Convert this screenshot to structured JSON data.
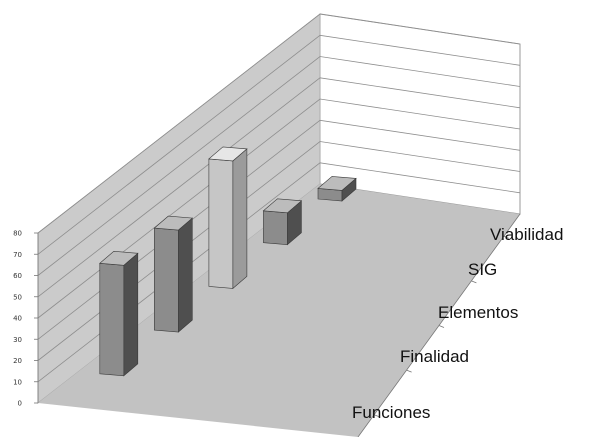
{
  "chart_data": {
    "type": "bar",
    "variant": "3d-column",
    "title": "",
    "xlabel": "",
    "ylabel": "",
    "categories": [
      "Funciones",
      "Finalidad",
      "Elementos",
      "SIG",
      "Viabilidad"
    ],
    "values": [
      52,
      48,
      60,
      15,
      5
    ],
    "ylim": [
      0,
      80
    ],
    "yticks": [
      0,
      10,
      20,
      30,
      40,
      50,
      60,
      70,
      80
    ],
    "grid": true,
    "legend": "none",
    "colors": {
      "bar_front": "#8c8c8c",
      "bar_side": "#4f4f4f",
      "bar_top": "#bcbcbc",
      "highlight_front": "#c6c6c6",
      "highlight_side": "#9b9b9b",
      "highlight_top": "#e6e6e6",
      "back_wall": "#cbcbcb",
      "right_wall": "#ffffff",
      "floor": "#c2c2c2",
      "grid": "#8e8e8e"
    }
  }
}
